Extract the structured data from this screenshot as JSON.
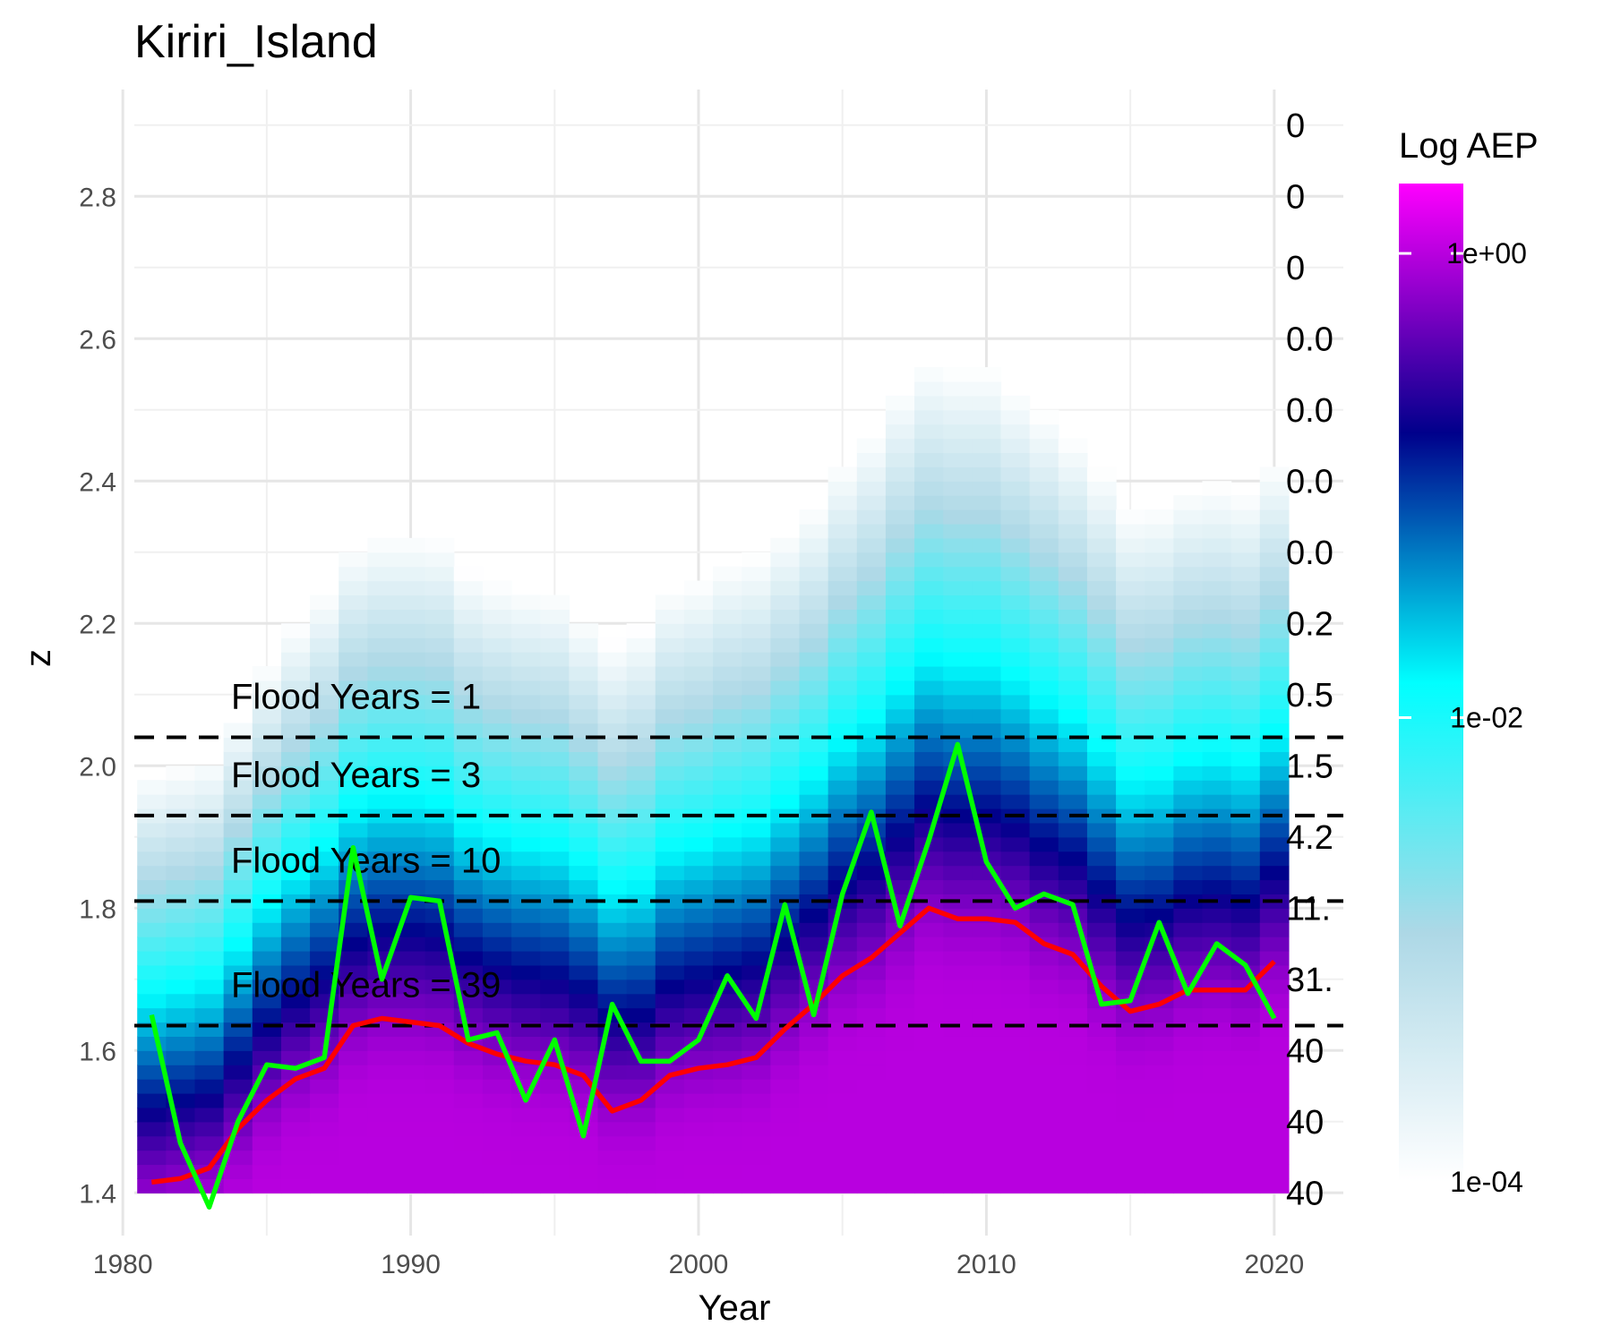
{
  "chart_data": {
    "type": "heatmap",
    "title": "Kiriri_Island",
    "xlabel": "Year",
    "ylabel": "z",
    "xlim": [
      1980.4,
      2022.4
    ],
    "ylim": [
      1.34,
      2.95
    ],
    "x_ticks": [
      1980,
      1990,
      2000,
      2010,
      2020
    ],
    "y_ticks": [
      1.4,
      1.6,
      1.8,
      2.0,
      2.2,
      2.4,
      2.6,
      2.8
    ],
    "legend": {
      "title": "Log AEP",
      "scale": "log10",
      "range": [
        0.0001,
        2
      ],
      "ticks": [
        {
          "value": 1,
          "label": "1e+00"
        },
        {
          "value": 0.01,
          "label": "1e-02"
        },
        {
          "value": 0.0001,
          "label": "1e-04"
        }
      ],
      "colors": [
        "#ffffff",
        "#add8e6",
        "#00ffff",
        "#00008b",
        "#ff00ff"
      ]
    },
    "heatmap": {
      "years": [
        1981,
        1982,
        1983,
        1984,
        1985,
        1986,
        1987,
        1988,
        1989,
        1990,
        1991,
        1992,
        1993,
        1994,
        1995,
        1996,
        1997,
        1998,
        1999,
        2000,
        2001,
        2002,
        2003,
        2004,
        2005,
        2006,
        2007,
        2008,
        2009,
        2010,
        2011,
        2012,
        2013,
        2014,
        2015,
        2016,
        2017,
        2018,
        2019,
        2020
      ],
      "z_min": 1.4,
      "z_max": 2.9,
      "z_step": 0.02,
      "location": [
        1.41,
        1.42,
        1.43,
        1.47,
        1.52,
        1.555,
        1.58,
        1.625,
        1.64,
        1.64,
        1.635,
        1.61,
        1.595,
        1.585,
        1.58,
        1.565,
        1.53,
        1.53,
        1.565,
        1.575,
        1.58,
        1.59,
        1.625,
        1.66,
        1.7,
        1.72,
        1.76,
        1.8,
        1.79,
        1.79,
        1.78,
        1.75,
        1.735,
        1.69,
        1.655,
        1.66,
        1.685,
        1.69,
        1.68,
        1.72
      ],
      "spread": [
        0.14,
        0.14,
        0.14,
        0.145,
        0.15,
        0.155,
        0.16,
        0.165,
        0.165,
        0.165,
        0.165,
        0.16,
        0.16,
        0.16,
        0.16,
        0.155,
        0.155,
        0.16,
        0.165,
        0.165,
        0.17,
        0.17,
        0.17,
        0.17,
        0.175,
        0.18,
        0.185,
        0.185,
        0.185,
        0.185,
        0.18,
        0.18,
        0.175,
        0.175,
        0.17,
        0.17,
        0.17,
        0.17,
        0.17,
        0.17
      ]
    },
    "series": [
      {
        "name": "annual maximum",
        "color": "#00ff00",
        "x": [
          1981,
          1982,
          1983,
          1984,
          1985,
          1986,
          1987,
          1988,
          1989,
          1990,
          1991,
          1992,
          1993,
          1994,
          1995,
          1996,
          1997,
          1998,
          1999,
          2000,
          2001,
          2002,
          2003,
          2004,
          2005,
          2006,
          2007,
          2008,
          2009,
          2010,
          2011,
          2012,
          2013,
          2014,
          2015,
          2016,
          2017,
          2018,
          2019,
          2020
        ],
        "y": [
          1.65,
          1.47,
          1.38,
          1.5,
          1.58,
          1.575,
          1.59,
          1.885,
          1.7,
          1.815,
          1.81,
          1.615,
          1.625,
          1.53,
          1.615,
          1.48,
          1.665,
          1.585,
          1.585,
          1.615,
          1.705,
          1.645,
          1.805,
          1.65,
          1.82,
          1.935,
          1.775,
          1.895,
          2.03,
          1.865,
          1.8,
          1.82,
          1.805,
          1.665,
          1.67,
          1.78,
          1.68,
          1.75,
          1.72,
          1.645
        ]
      },
      {
        "name": "trend",
        "color": "#ff0000",
        "x": [
          1981,
          1982,
          1983,
          1984,
          1985,
          1986,
          1987,
          1988,
          1989,
          1990,
          1991,
          1992,
          1993,
          1994,
          1995,
          1996,
          1997,
          1998,
          1999,
          2000,
          2001,
          2002,
          2003,
          2004,
          2005,
          2006,
          2007,
          2008,
          2009,
          2010,
          2011,
          2012,
          2013,
          2014,
          2015,
          2016,
          2017,
          2018,
          2019,
          2020
        ],
        "y": [
          1.415,
          1.42,
          1.435,
          1.49,
          1.53,
          1.56,
          1.575,
          1.635,
          1.645,
          1.64,
          1.635,
          1.61,
          1.595,
          1.585,
          1.58,
          1.565,
          1.515,
          1.53,
          1.565,
          1.575,
          1.58,
          1.59,
          1.63,
          1.665,
          1.705,
          1.73,
          1.765,
          1.8,
          1.785,
          1.785,
          1.78,
          1.75,
          1.735,
          1.69,
          1.655,
          1.665,
          1.685,
          1.685,
          1.685,
          1.725
        ]
      }
    ],
    "thresholds": [
      {
        "z": 2.04,
        "label": "Flood Years = 1"
      },
      {
        "z": 1.93,
        "label": "Flood Years = 3"
      },
      {
        "z": 1.81,
        "label": "Flood Years = 10"
      },
      {
        "z": 1.635,
        "label": "Flood Years = 39"
      }
    ],
    "right_labels": [
      {
        "z": 2.9,
        "label": "0"
      },
      {
        "z": 2.8,
        "label": "0"
      },
      {
        "z": 2.7,
        "label": "0"
      },
      {
        "z": 2.6,
        "label": "0.0"
      },
      {
        "z": 2.5,
        "label": "0.0"
      },
      {
        "z": 2.4,
        "label": "0.0"
      },
      {
        "z": 2.3,
        "label": "0.0"
      },
      {
        "z": 2.2,
        "label": "0.2"
      },
      {
        "z": 2.1,
        "label": "0.5"
      },
      {
        "z": 2.0,
        "label": "1.5"
      },
      {
        "z": 1.9,
        "label": "4.2"
      },
      {
        "z": 1.8,
        "label": "11."
      },
      {
        "z": 1.7,
        "label": "31."
      },
      {
        "z": 1.6,
        "label": "40"
      },
      {
        "z": 1.5,
        "label": "40"
      },
      {
        "z": 1.4,
        "label": "40"
      }
    ]
  }
}
